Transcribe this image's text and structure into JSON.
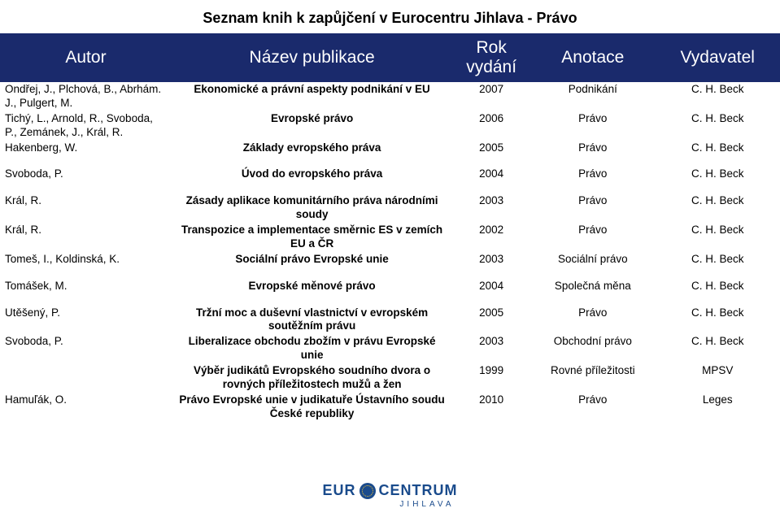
{
  "title": "Seznam knih k zapůjčení v Eurocentru Jihlava - Právo",
  "columns": [
    "Autor",
    "Název publikace",
    "Rok vydání",
    "Anotace",
    "Vydavatel"
  ],
  "header_bg": "#1a2a6c",
  "header_fg": "#ffffff",
  "rows": [
    {
      "author": "Ondřej, J., Plchová, B., Abrhám. J., Pulgert, M.",
      "title": "Ekonomické a právní aspekty podnikání v EU",
      "year": "2007",
      "annotation": "Podnikání",
      "publisher": "C. H. Beck"
    },
    {
      "author": "Tichý, L., Arnold, R., Svoboda, P., Zemánek, J., Král, R.",
      "title": "Evropské právo",
      "year": "2006",
      "annotation": "Právo",
      "publisher": "C. H. Beck"
    },
    {
      "author": "Hakenberg, W.",
      "title": "Základy evropského práva",
      "year": "2005",
      "annotation": "Právo",
      "publisher": "C. H. Beck"
    },
    {
      "spacer": true
    },
    {
      "author": "Svoboda, P.",
      "title": "Úvod do evropského práva",
      "year": "2004",
      "annotation": "Právo",
      "publisher": "C. H. Beck"
    },
    {
      "spacer": true
    },
    {
      "author": "Král, R.",
      "title": "Zásady aplikace komunitárního práva národními soudy",
      "year": "2003",
      "annotation": "Právo",
      "publisher": "C. H. Beck"
    },
    {
      "author": "Král, R.",
      "title": "Transpozice a implementace směrnic ES v zemích EU a ČR",
      "year": "2002",
      "annotation": "Právo",
      "publisher": "C. H. Beck"
    },
    {
      "author": "Tomeš, I., Koldinská, K.",
      "title": "Sociální právo Evropské unie",
      "year": "2003",
      "annotation": "Sociální právo",
      "publisher": "C. H. Beck"
    },
    {
      "spacer": true
    },
    {
      "author": "Tomášek, M.",
      "title": "Evropské měnové právo",
      "year": "2004",
      "annotation": "Společná měna",
      "publisher": "C. H. Beck"
    },
    {
      "spacer": true
    },
    {
      "author": "Utěšený, P.",
      "title": "Tržní moc a duševní vlastnictví v evropském soutěžním právu",
      "year": "2005",
      "annotation": "Právo",
      "publisher": "C. H. Beck"
    },
    {
      "author": "Svoboda, P.",
      "title": "Liberalizace obchodu zbožím v právu Evropské unie",
      "year": "2003",
      "annotation": "Obchodní právo",
      "publisher": "C. H. Beck"
    },
    {
      "author": "",
      "title": "Výběr judikátů Evropského soudního dvora o rovných příležitostech mužů a žen",
      "year": "1999",
      "annotation": "Rovné příležitosti",
      "publisher": "MPSV"
    },
    {
      "author": "Hamuľák, O.",
      "title": "Právo Evropské unie v judikatuře Ústavního soudu České republiky",
      "year": "2010",
      "annotation": "Právo",
      "publisher": "Leges"
    }
  ],
  "logo": {
    "left": "EUR",
    "right": "CENTRUM",
    "sub": "JIHLAVA"
  }
}
